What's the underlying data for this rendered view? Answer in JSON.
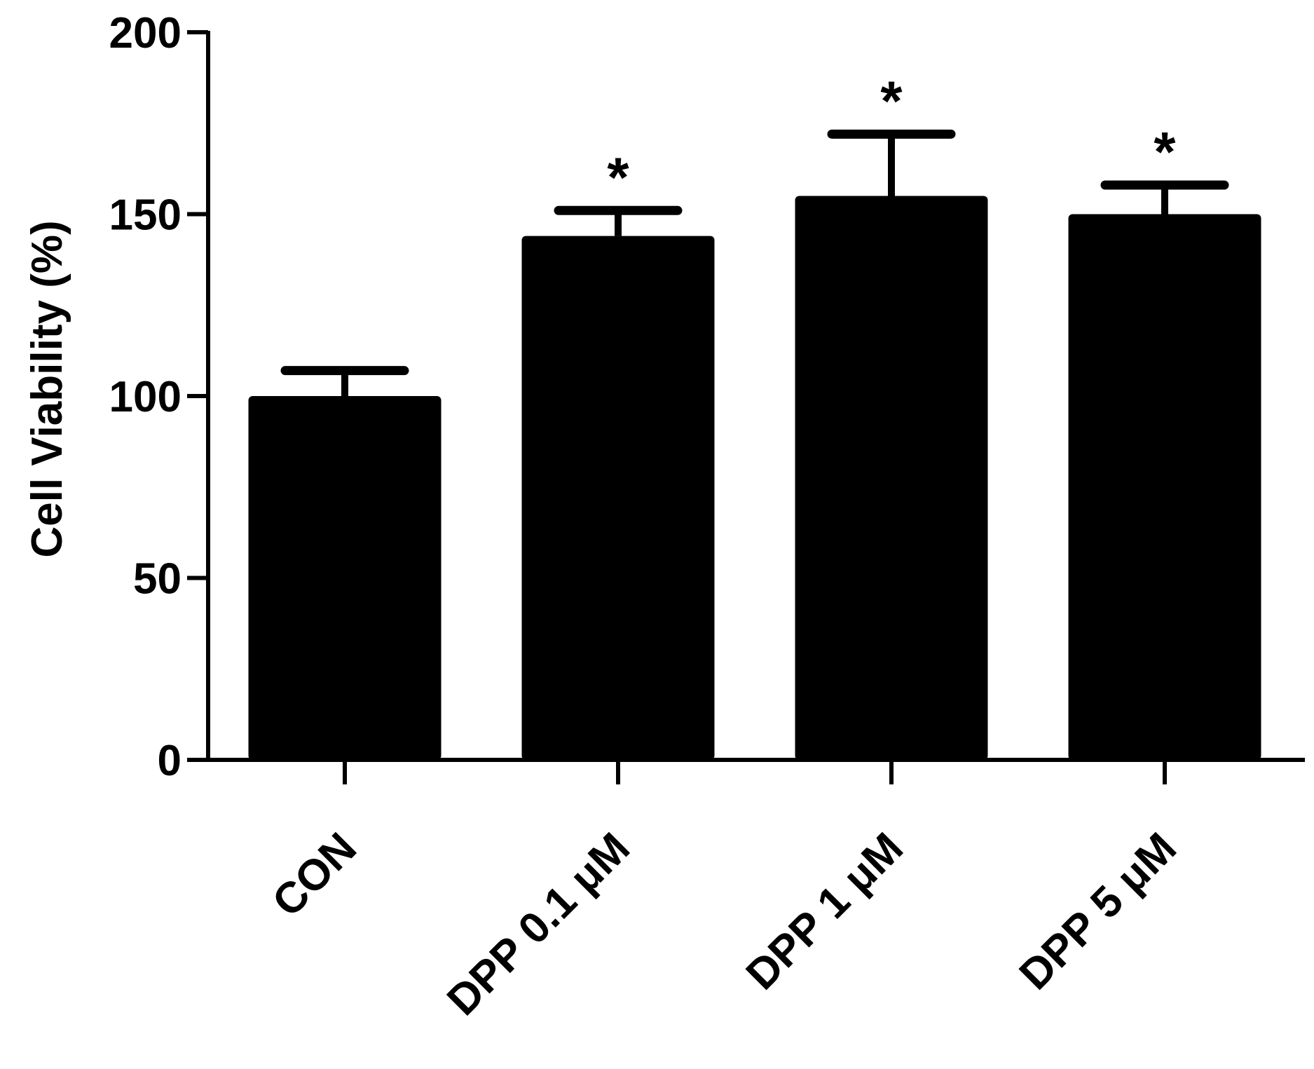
{
  "chart_data": {
    "type": "bar",
    "title": "",
    "xlabel": "",
    "ylabel": "Cell Viability (%)",
    "ylim": [
      0,
      200
    ],
    "yticks": [
      "0",
      "50",
      "100",
      "150",
      "200"
    ],
    "categories": [
      "CON",
      "DPP 0.1 μM",
      "DPP 1 μM",
      "DPP 5 μM"
    ],
    "values": [
      100,
      144,
      155,
      150
    ],
    "error_bars": [
      7,
      7,
      17,
      8
    ],
    "significance": [
      "",
      "*",
      "*",
      "*"
    ],
    "bar_color": "#000000",
    "grid": false,
    "legend": "none"
  }
}
